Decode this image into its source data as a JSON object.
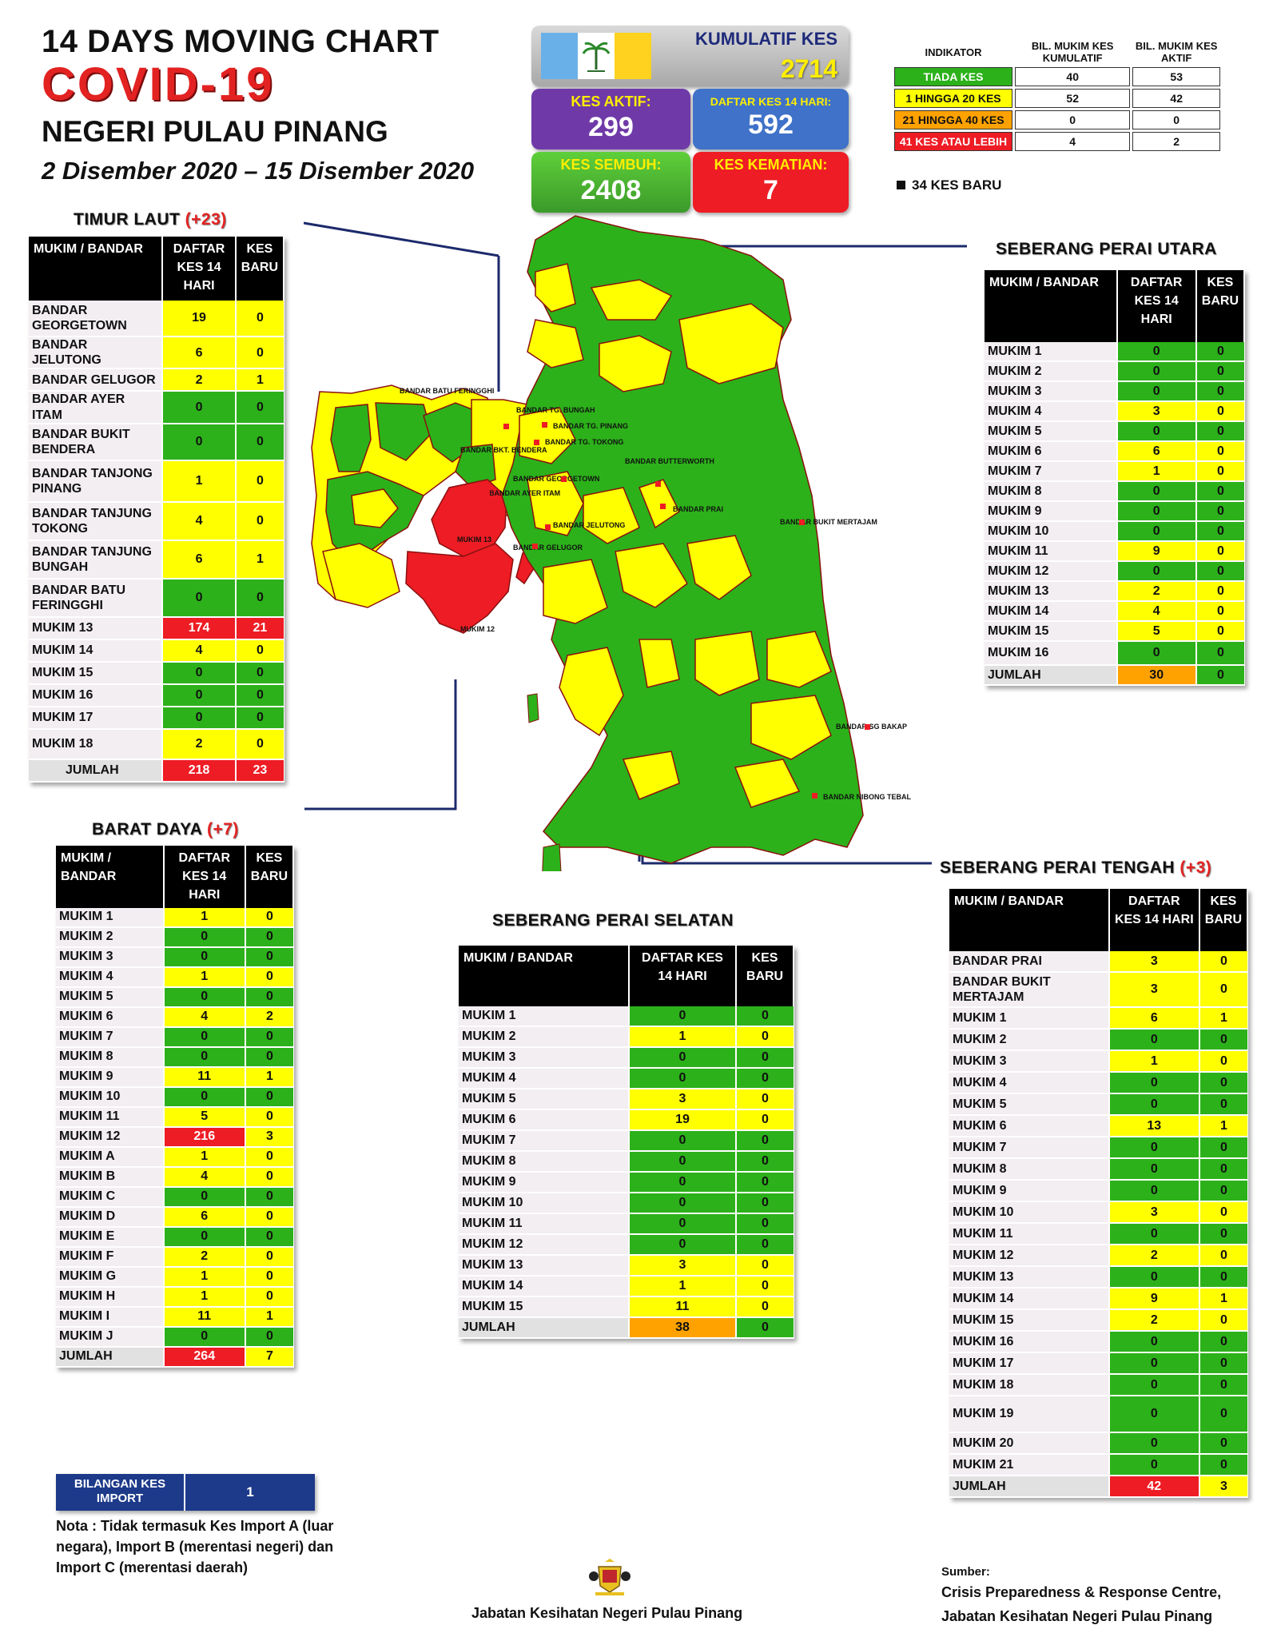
{
  "title": {
    "line1": "14  DAYS MOVING CHART",
    "line2": "COVID-19",
    "line3": "NEGERI PULAU PINANG",
    "line4": "2 Disember 2020 – 15 Disember 2020"
  },
  "summary": {
    "kumulatif_label": "KUMULATIF KES",
    "kumulatif_value": "2714",
    "aktif_label": "KES AKTIF:",
    "aktif_value": "299",
    "daftar_label": "DAFTAR KES 14 HARI:",
    "daftar_value": "592",
    "sembuh_label": "KES SEMBUH:",
    "sembuh_value": "2408",
    "kematian_label": "KES KEMATIAN:",
    "kematian_value": "7"
  },
  "indicator": {
    "headers": [
      "INDIKATOR",
      "BIL. MUKIM KES KUMULATIF",
      "BIL. MUKIM KES AKTIF"
    ],
    "rows": [
      {
        "label": "TIADA KES",
        "kumulatif": "40",
        "aktif": "53",
        "color": "#2cb11a"
      },
      {
        "label": "1 HINGGA 20 KES",
        "kumulatif": "52",
        "aktif": "42",
        "color": "#ffff00"
      },
      {
        "label": "21 HINGGA 40 KES",
        "kumulatif": "0",
        "aktif": "0",
        "color": "#ffa200"
      },
      {
        "label": "41 KES ATAU LEBIH",
        "kumulatif": "4",
        "aktif": "2",
        "color": "#ee1c24"
      }
    ],
    "new_cases_note": "34 KES BARU"
  },
  "colors": {
    "green": "#2cb11a",
    "yellow": "#ffff00",
    "orange": "#ffa200",
    "red": "#ee1c24",
    "purple": "#6f3aa8",
    "blue": "#3f72c8"
  },
  "timur_laut": {
    "title": "TIMUR LAUT",
    "increase": "(+23)",
    "headers": [
      "MUKIM / BANDAR",
      "DAFTAR KES 14 HARI",
      "KES BARU"
    ],
    "rows": [
      [
        "BANDAR GEORGETOWN",
        "19",
        "0"
      ],
      [
        "BANDAR JELUTONG",
        "6",
        "0"
      ],
      [
        "BANDAR GELUGOR",
        "2",
        "1"
      ],
      [
        "BANDAR AYER ITAM",
        "0",
        "0"
      ],
      [
        "BANDAR BUKIT BENDERA",
        "0",
        "0"
      ],
      [
        "BANDAR TANJONG PINANG",
        "1",
        "0"
      ],
      [
        "BANDAR TANJUNG TOKONG",
        "4",
        "0"
      ],
      [
        "BANDAR TANJUNG BUNGAH",
        "6",
        "1"
      ],
      [
        "BANDAR BATU FERINGGHI",
        "0",
        "0"
      ],
      [
        "MUKIM 13",
        "174",
        "21"
      ],
      [
        "MUKIM 14",
        "4",
        "0"
      ],
      [
        "MUKIM 15",
        "0",
        "0"
      ],
      [
        "MUKIM 16",
        "0",
        "0"
      ],
      [
        "MUKIM 17",
        "0",
        "0"
      ],
      [
        "MUKIM 18",
        "2",
        "0"
      ]
    ],
    "total": [
      "JUMLAH",
      "218",
      "23"
    ]
  },
  "barat_daya": {
    "title": "BARAT DAYA",
    "increase": "(+7)",
    "headers": [
      "MUKIM / BANDAR",
      "DAFTAR KES 14 HARI",
      "KES BARU"
    ],
    "rows": [
      [
        "MUKIM 1",
        "1",
        "0"
      ],
      [
        "MUKIM 2",
        "0",
        "0"
      ],
      [
        "MUKIM 3",
        "0",
        "0"
      ],
      [
        "MUKIM 4",
        "1",
        "0"
      ],
      [
        "MUKIM 5",
        "0",
        "0"
      ],
      [
        "MUKIM 6",
        "4",
        "2"
      ],
      [
        "MUKIM 7",
        "0",
        "0"
      ],
      [
        "MUKIM 8",
        "0",
        "0"
      ],
      [
        "MUKIM 9",
        "11",
        "1"
      ],
      [
        "MUKIM 10",
        "0",
        "0"
      ],
      [
        "MUKIM 11",
        "5",
        "0"
      ],
      [
        "MUKIM 12",
        "216",
        "3"
      ],
      [
        "MUKIM A",
        "1",
        "0"
      ],
      [
        "MUKIM B",
        "4",
        "0"
      ],
      [
        "MUKIM C",
        "0",
        "0"
      ],
      [
        "MUKIM D",
        "6",
        "0"
      ],
      [
        "MUKIM E",
        "0",
        "0"
      ],
      [
        "MUKIM F",
        "2",
        "0"
      ],
      [
        "MUKIM G",
        "1",
        "0"
      ],
      [
        "MUKIM H",
        "1",
        "0"
      ],
      [
        "MUKIM I",
        "11",
        "1"
      ],
      [
        "MUKIM J",
        "0",
        "0"
      ]
    ],
    "total": [
      "JUMLAH",
      "264",
      "7"
    ]
  },
  "spu": {
    "title": "SEBERANG PERAI UTARA",
    "headers": [
      "MUKIM / BANDAR",
      "DAFTAR KES 14 HARI",
      "KES BARU"
    ],
    "rows": [
      [
        "MUKIM 1",
        "0",
        "0"
      ],
      [
        "MUKIM 2",
        "0",
        "0"
      ],
      [
        "MUKIM 3",
        "0",
        "0"
      ],
      [
        "MUKIM 4",
        "3",
        "0"
      ],
      [
        "MUKIM 5",
        "0",
        "0"
      ],
      [
        "MUKIM 6",
        "6",
        "0"
      ],
      [
        "MUKIM 7",
        "1",
        "0"
      ],
      [
        "MUKIM 8",
        "0",
        "0"
      ],
      [
        "MUKIM 9",
        "0",
        "0"
      ],
      [
        "MUKIM 10",
        "0",
        "0"
      ],
      [
        "MUKIM 11",
        "9",
        "0"
      ],
      [
        "MUKIM 12",
        "0",
        "0"
      ],
      [
        "MUKIM 13",
        "2",
        "0"
      ],
      [
        "MUKIM 14",
        "4",
        "0"
      ],
      [
        "MUKIM 15",
        "5",
        "0"
      ],
      [
        "MUKIM 16",
        "0",
        "0"
      ]
    ],
    "total": [
      "JUMLAH",
      "30",
      "0"
    ]
  },
  "sps": {
    "title": "SEBERANG PERAI SELATAN",
    "headers": [
      "MUKIM / BANDAR",
      "DAFTAR KES 14 HARI",
      "KES BARU"
    ],
    "rows": [
      [
        "MUKIM 1",
        "0",
        "0"
      ],
      [
        "MUKIM 2",
        "1",
        "0"
      ],
      [
        "MUKIM 3",
        "0",
        "0"
      ],
      [
        "MUKIM 4",
        "0",
        "0"
      ],
      [
        "MUKIM 5",
        "3",
        "0"
      ],
      [
        "MUKIM 6",
        "19",
        "0"
      ],
      [
        "MUKIM 7",
        "0",
        "0"
      ],
      [
        "MUKIM 8",
        "0",
        "0"
      ],
      [
        "MUKIM 9",
        "0",
        "0"
      ],
      [
        "MUKIM 10",
        "0",
        "0"
      ],
      [
        "MUKIM 11",
        "0",
        "0"
      ],
      [
        "MUKIM 12",
        "0",
        "0"
      ],
      [
        "MUKIM 13",
        "3",
        "0"
      ],
      [
        "MUKIM 14",
        "1",
        "0"
      ],
      [
        "MUKIM 15",
        "11",
        "0"
      ]
    ],
    "total": [
      "JUMLAH",
      "38",
      "0"
    ]
  },
  "spt": {
    "title": "SEBERANG PERAI TENGAH",
    "increase": "(+3)",
    "headers": [
      "MUKIM / BANDAR",
      "DAFTAR KES 14 HARI",
      "KES BARU"
    ],
    "rows": [
      [
        "BANDAR PRAI",
        "3",
        "0"
      ],
      [
        "BANDAR BUKIT MERTAJAM",
        "3",
        "0"
      ],
      [
        "MUKIM 1",
        "6",
        "1"
      ],
      [
        "MUKIM 2",
        "0",
        "0"
      ],
      [
        "MUKIM 3",
        "1",
        "0"
      ],
      [
        "MUKIM 4",
        "0",
        "0"
      ],
      [
        "MUKIM 5",
        "0",
        "0"
      ],
      [
        "MUKIM 6",
        "13",
        "1"
      ],
      [
        "MUKIM 7",
        "0",
        "0"
      ],
      [
        "MUKIM 8",
        "0",
        "0"
      ],
      [
        "MUKIM 9",
        "0",
        "0"
      ],
      [
        "MUKIM 10",
        "3",
        "0"
      ],
      [
        "MUKIM 11",
        "0",
        "0"
      ],
      [
        "MUKIM 12",
        "2",
        "0"
      ],
      [
        "MUKIM 13",
        "0",
        "0"
      ],
      [
        "MUKIM 14",
        "9",
        "1"
      ],
      [
        "MUKIM 15",
        "2",
        "0"
      ],
      [
        "MUKIM 16",
        "0",
        "0"
      ],
      [
        "MUKIM 17",
        "0",
        "0"
      ],
      [
        "MUKIM 18",
        "0",
        "0"
      ],
      [
        "MUKIM 19",
        "0",
        "0"
      ],
      [
        "MUKIM 20",
        "0",
        "0"
      ],
      [
        "MUKIM 21",
        "0",
        "0"
      ]
    ],
    "total": [
      "JUMLAH",
      "42",
      "3"
    ]
  },
  "import": {
    "label": "BILANGAN KES IMPORT",
    "value": "1"
  },
  "note": "Nota : Tidak termasuk Kes Import A (luar negara), Import B (merentasi negeri) dan Import C (merentasi daerah)",
  "footer": {
    "center": "Jabatan Kesihatan Negeri Pulau Pinang",
    "source_label": "Sumber:",
    "source_line1": "Crisis Preparedness & Response Centre,",
    "source_line2": "Jabatan Kesihatan Negeri Pulau Pinang"
  },
  "map_labels": {
    "island": [
      "BANDAR BATU FERINGGHI",
      "BANDAR TG. BUNGAH",
      "BANDAR TG. PINANG",
      "BANDAR TG. TOKONG",
      "BANDAR GEORGETOWN",
      "BANDAR AYER ITAM",
      "BANDAR JELUTONG",
      "BANDAR GELUGOR",
      "BANDAR BKT. BENDERA",
      "MUKIM 13",
      "MUKIM 12"
    ],
    "mainland": [
      "BANDAR BUTTERWORTH",
      "BANDAR PRAI",
      "BANDAR BUKIT MERTAJAM",
      "BANDAR SG BAKAP",
      "BANDAR NIBONG TEBAL"
    ]
  }
}
